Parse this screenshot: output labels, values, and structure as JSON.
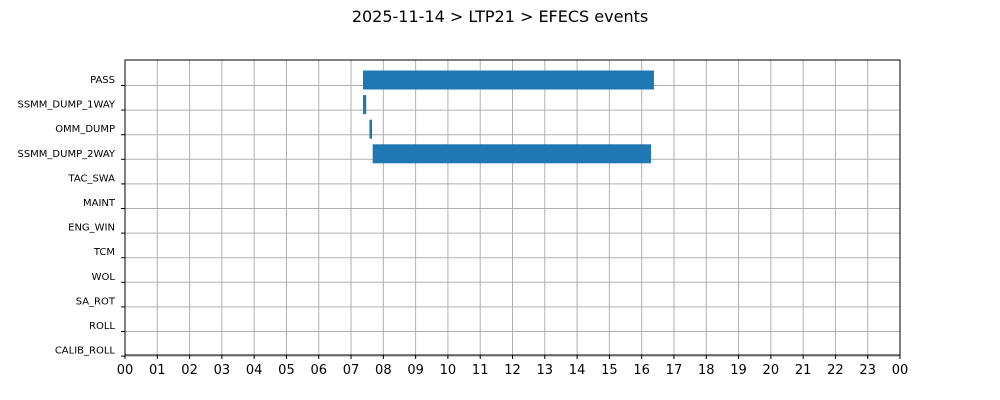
{
  "chart_data": {
    "type": "bar",
    "orientation": "horizontal-timeline",
    "title": "2025-11-14 > LTP21 > EFECS events",
    "xlabel": "",
    "ylabel": "",
    "x_unit": "hour of day",
    "xlim": [
      0,
      24
    ],
    "x_ticks": [
      0,
      1,
      2,
      3,
      4,
      5,
      6,
      7,
      8,
      9,
      10,
      11,
      12,
      13,
      14,
      15,
      16,
      17,
      18,
      19,
      20,
      21,
      22,
      23,
      24
    ],
    "x_tick_labels": [
      "00",
      "01",
      "02",
      "03",
      "04",
      "05",
      "06",
      "07",
      "08",
      "09",
      "10",
      "11",
      "12",
      "13",
      "14",
      "15",
      "16",
      "17",
      "18",
      "19",
      "20",
      "21",
      "22",
      "23",
      "00"
    ],
    "categories": [
      "PASS",
      "SSMM_DUMP_1WAY",
      "OMM_DUMP",
      "SSMM_DUMP_2WAY",
      "TAC_SWA",
      "MAINT",
      "ENG_WIN",
      "TCM",
      "WOL",
      "SA_ROT",
      "ROLL",
      "CALIB_ROLL"
    ],
    "events": [
      {
        "category": "PASS",
        "start": 7.37,
        "end": 16.38
      },
      {
        "category": "SSMM_DUMP_1WAY",
        "start": 7.37,
        "end": 7.47
      },
      {
        "category": "OMM_DUMP",
        "start": 7.57,
        "end": 7.65
      },
      {
        "category": "SSMM_DUMP_2WAY",
        "start": 7.67,
        "end": 16.29
      }
    ],
    "grid": true,
    "bar_color": "#1f77b4",
    "grid_color": "#b0b0b0"
  }
}
